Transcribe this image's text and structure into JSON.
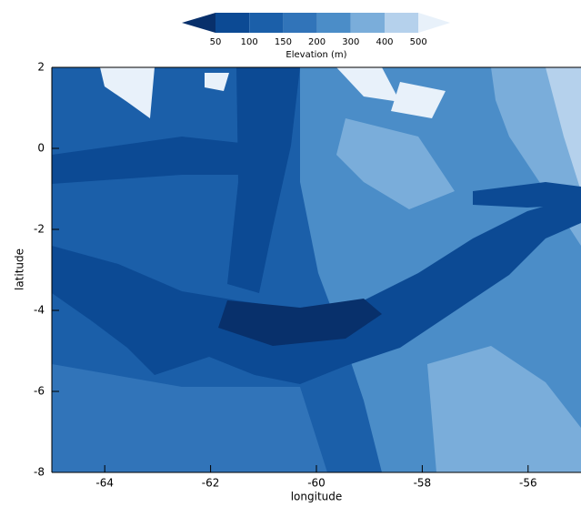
{
  "chart_data": {
    "type": "contourf",
    "colorbar_label": "Elevation (m)",
    "levels": [
      50,
      100,
      150,
      200,
      300,
      400,
      500
    ],
    "colors": [
      "#08306b",
      "#0c4a94",
      "#1b5fa9",
      "#3174b9",
      "#4b8dc8",
      "#7aadda",
      "#b5d1ec",
      "#e8f1fa"
    ],
    "extend": "both",
    "x_label": "longitude",
    "y_label": "latitude",
    "xlim": [
      -65,
      -55
    ],
    "xticks": [
      -64,
      -62,
      -60,
      -58,
      -56
    ],
    "ylim": [
      -8,
      2
    ],
    "yticks": [
      -8,
      -6,
      -4,
      -2,
      0,
      2
    ]
  }
}
